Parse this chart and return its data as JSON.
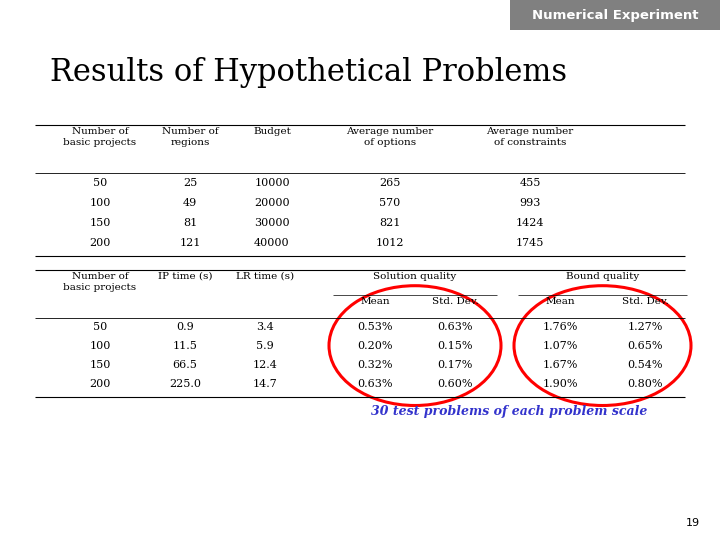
{
  "title": "Results of Hypothetical Problems",
  "header_label": "Numerical Experiment",
  "header_bg": "#808080",
  "header_text_color": "#ffffff",
  "bg_color": "#ffffff",
  "title_color": "#000000",
  "title_fontsize": 22,
  "table1_headers": [
    "Number of\nbasic projects",
    "Number of\nregions",
    "Budget",
    "Average number\nof options",
    "Average number\nof constraints"
  ],
  "table1_data": [
    [
      "50",
      "25",
      "10000",
      "265",
      "455"
    ],
    [
      "100",
      "49",
      "20000",
      "570",
      "993"
    ],
    [
      "150",
      "81",
      "30000",
      "821",
      "1424"
    ],
    [
      "200",
      "121",
      "40000",
      "1012",
      "1745"
    ]
  ],
  "table2_data": [
    [
      "50",
      "0.9",
      "3.4",
      "0.53%",
      "0.63%",
      "1.76%",
      "1.27%"
    ],
    [
      "100",
      "11.5",
      "5.9",
      "0.20%",
      "0.15%",
      "1.07%",
      "0.65%"
    ],
    [
      "150",
      "66.5",
      "12.4",
      "0.32%",
      "0.17%",
      "1.67%",
      "0.54%"
    ],
    [
      "200",
      "225.0",
      "14.7",
      "0.63%",
      "0.60%",
      "1.90%",
      "0.80%"
    ]
  ],
  "footnote": "30 test problems of each problem scale",
  "footnote_color": "#3333cc",
  "page_number": "19"
}
